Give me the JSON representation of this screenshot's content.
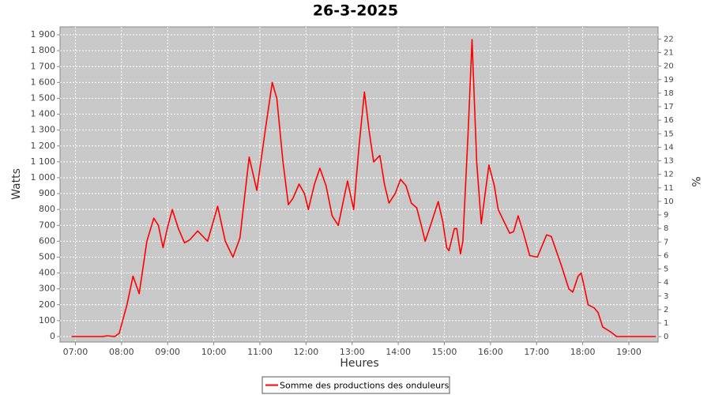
{
  "chart_data": {
    "type": "line",
    "title": "26-3-2025",
    "x_label": "Heures",
    "y_label": "Watts",
    "y2_label": "%",
    "x": [
      "06:55",
      "07:36",
      "07:41",
      "07:51",
      "07:57",
      "08:07",
      "08:15",
      "08:23",
      "08:33",
      "08:42",
      "08:48",
      "08:54",
      "09:00",
      "09:06",
      "09:14",
      "09:22",
      "09:29",
      "09:39",
      "09:52",
      "10:05",
      "10:15",
      "10:25",
      "10:34",
      "10:46",
      "10:56",
      "11:07",
      "11:16",
      "11:22",
      "11:30",
      "11:37",
      "11:43",
      "11:51",
      "11:58",
      "12:03",
      "12:11",
      "12:18",
      "12:26",
      "12:34",
      "12:42",
      "12:54",
      "13:02",
      "13:09",
      "13:16",
      "13:22",
      "13:28",
      "13:36",
      "13:42",
      "13:48",
      "13:56",
      "14:03",
      "14:10",
      "14:17",
      "14:24",
      "14:30",
      "14:35",
      "14:42",
      "14:52",
      "14:58",
      "15:03",
      "15:06",
      "15:13",
      "15:16",
      "15:21",
      "15:24",
      "15:31",
      "15:36",
      "15:42",
      "15:48",
      "15:53",
      "15:58",
      "16:05",
      "16:10",
      "16:25",
      "16:30",
      "16:36",
      "16:43",
      "16:51",
      "17:01",
      "17:13",
      "17:19",
      "17:32",
      "17:42",
      "17:47",
      "17:54",
      "17:58",
      "18:07",
      "18:15",
      "18:20",
      "18:26",
      "18:36",
      "18:44",
      "19:35"
    ],
    "series": [
      {
        "name": "Somme des productions des onduleurs",
        "color": "#ff0000",
        "values": [
          0,
          0,
          5,
          0,
          20,
          200,
          380,
          270,
          600,
          745,
          700,
          560,
          690,
          800,
          680,
          590,
          610,
          665,
          600,
          820,
          600,
          500,
          620,
          1130,
          920,
          1300,
          1600,
          1500,
          1100,
          830,
          870,
          960,
          900,
          800,
          960,
          1060,
          950,
          760,
          700,
          980,
          800,
          1200,
          1540,
          1300,
          1100,
          1140,
          960,
          840,
          900,
          990,
          950,
          840,
          810,
          700,
          600,
          700,
          850,
          720,
          560,
          540,
          680,
          680,
          520,
          600,
          1300,
          1870,
          1100,
          710,
          900,
          1080,
          950,
          800,
          650,
          660,
          760,
          650,
          510,
          500,
          640,
          630,
          450,
          300,
          280,
          380,
          400,
          200,
          180,
          150,
          60,
          30,
          0,
          0
        ]
      }
    ],
    "xlim": [
      "06:40",
      "19:38"
    ],
    "xticks": [
      "07:00",
      "08:00",
      "09:00",
      "10:00",
      "11:00",
      "12:00",
      "13:00",
      "14:00",
      "15:00",
      "16:00",
      "17:00",
      "18:00",
      "19:00"
    ],
    "ylim": [
      -35,
      1950
    ],
    "yticks": [
      0,
      100,
      200,
      300,
      400,
      500,
      600,
      700,
      800,
      900,
      {
        "value": 1000,
        "label": "1 000"
      },
      {
        "value": 1100,
        "label": "1 100"
      },
      {
        "value": 1200,
        "label": "1 200"
      },
      {
        "value": 1300,
        "label": "1 300"
      },
      {
        "value": 1400,
        "label": "1 400"
      },
      {
        "value": 1500,
        "label": "1 500"
      },
      {
        "value": 1600,
        "label": "1 600"
      },
      {
        "value": 1700,
        "label": "1 700"
      },
      {
        "value": 1800,
        "label": "1 800"
      },
      {
        "value": 1900,
        "label": "1 900"
      }
    ],
    "y2lim": [
      -0.4,
      22.9
    ],
    "y2ticks": [
      0,
      1,
      2,
      3,
      4,
      5,
      6,
      7,
      8,
      9,
      10,
      11,
      12,
      13,
      14,
      15,
      16,
      17,
      18,
      19,
      20,
      21,
      22
    ],
    "grid": true,
    "background": "#c8c8c8"
  }
}
